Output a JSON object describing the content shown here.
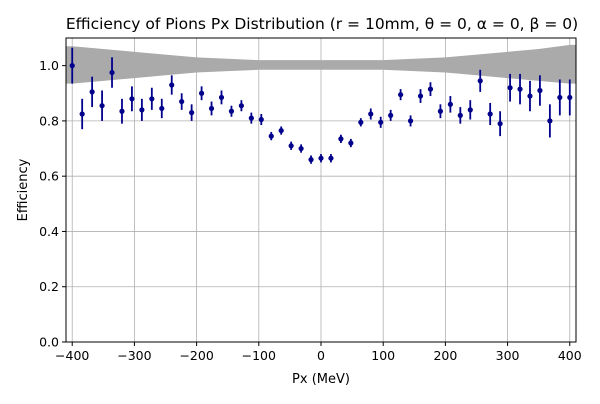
{
  "chart_data": {
    "type": "scatter",
    "title": "Efficiency of Pions Px Distribution (r = 10mm, θ = 0, α = 0, β = 0)",
    "xlabel": "Px (MeV)",
    "ylabel": "Efficiency",
    "xlim": [
      -410,
      410
    ],
    "ylim": [
      0.0,
      1.1
    ],
    "xticks": [
      -400,
      -300,
      -200,
      -100,
      0,
      100,
      200,
      300,
      400
    ],
    "yticks": [
      0.0,
      0.2,
      0.4,
      0.6,
      0.8,
      1.0
    ],
    "xtick_labels": [
      "−400",
      "−300",
      "−200",
      "−100",
      "0",
      "100",
      "200",
      "300",
      "400"
    ],
    "ytick_labels": [
      "0.0",
      "0.2",
      "0.4",
      "0.6",
      "0.8",
      "1.0"
    ],
    "grid": true,
    "colors": {
      "points": "#00008b",
      "band": "#aaaaaa",
      "grid": "#b0b0b0"
    },
    "band": {
      "x": [
        -410,
        -400,
        -350,
        -300,
        -250,
        -200,
        -150,
        -100,
        -50,
        0,
        50,
        100,
        150,
        200,
        250,
        300,
        350,
        400,
        410
      ],
      "lower": [
        0.935,
        0.935,
        0.945,
        0.955,
        0.965,
        0.975,
        0.98,
        0.985,
        0.985,
        0.985,
        0.985,
        0.985,
        0.98,
        0.975,
        0.965,
        0.955,
        0.945,
        0.935,
        0.935
      ],
      "upper": [
        1.07,
        1.07,
        1.06,
        1.05,
        1.04,
        1.03,
        1.025,
        1.02,
        1.02,
        1.02,
        1.02,
        1.02,
        1.025,
        1.03,
        1.04,
        1.05,
        1.06,
        1.075,
        1.075
      ]
    },
    "x": [
      -400,
      -384,
      -368,
      -352,
      -336,
      -320,
      -304,
      -288,
      -272,
      -256,
      -240,
      -224,
      -208,
      -192,
      -176,
      -160,
      -144,
      -128,
      -112,
      -96,
      -80,
      -64,
      -48,
      -32,
      -16,
      0,
      16,
      32,
      48,
      64,
      80,
      96,
      112,
      128,
      144,
      160,
      176,
      192,
      208,
      224,
      240,
      256,
      272,
      288,
      304,
      320,
      336,
      352,
      368,
      384,
      400
    ],
    "y": [
      1.0,
      0.825,
      0.905,
      0.855,
      0.975,
      0.835,
      0.88,
      0.84,
      0.88,
      0.845,
      0.93,
      0.87,
      0.83,
      0.9,
      0.845,
      0.885,
      0.835,
      0.855,
      0.81,
      0.805,
      0.745,
      0.765,
      0.71,
      0.7,
      0.66,
      0.665,
      0.665,
      0.735,
      0.72,
      0.795,
      0.825,
      0.795,
      0.82,
      0.895,
      0.8,
      0.89,
      0.915,
      0.835,
      0.86,
      0.82,
      0.84,
      0.945,
      0.825,
      0.79,
      0.92,
      0.915,
      0.89,
      0.91,
      0.8,
      0.885,
      0.885
    ],
    "err": [
      0.065,
      0.055,
      0.055,
      0.055,
      0.055,
      0.045,
      0.045,
      0.04,
      0.04,
      0.035,
      0.035,
      0.03,
      0.03,
      0.025,
      0.025,
      0.025,
      0.02,
      0.02,
      0.02,
      0.02,
      0.015,
      0.015,
      0.015,
      0.015,
      0.015,
      0.015,
      0.015,
      0.015,
      0.015,
      0.015,
      0.02,
      0.02,
      0.02,
      0.02,
      0.02,
      0.025,
      0.025,
      0.025,
      0.03,
      0.03,
      0.035,
      0.04,
      0.04,
      0.045,
      0.05,
      0.055,
      0.055,
      0.055,
      0.06,
      0.065,
      0.065
    ]
  }
}
